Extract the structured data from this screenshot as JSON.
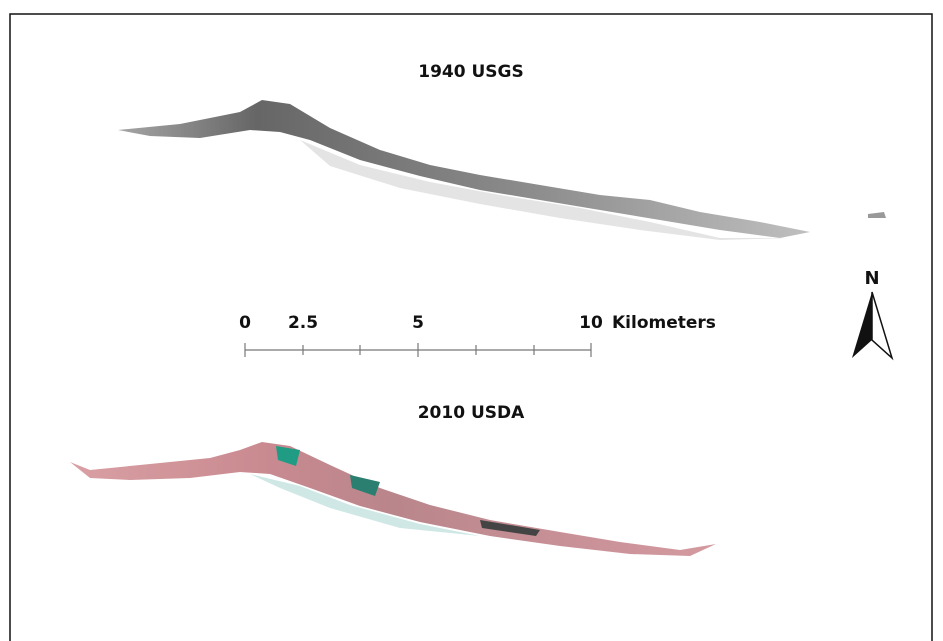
{
  "map": {
    "panels": [
      {
        "title": "1940 USGS"
      },
      {
        "title": "2010 USDA"
      }
    ],
    "scale_bar": {
      "labels": [
        "0",
        "2.5",
        "5",
        "10"
      ],
      "units": "Kilometers"
    },
    "north_arrow": {
      "label": "N"
    }
  }
}
